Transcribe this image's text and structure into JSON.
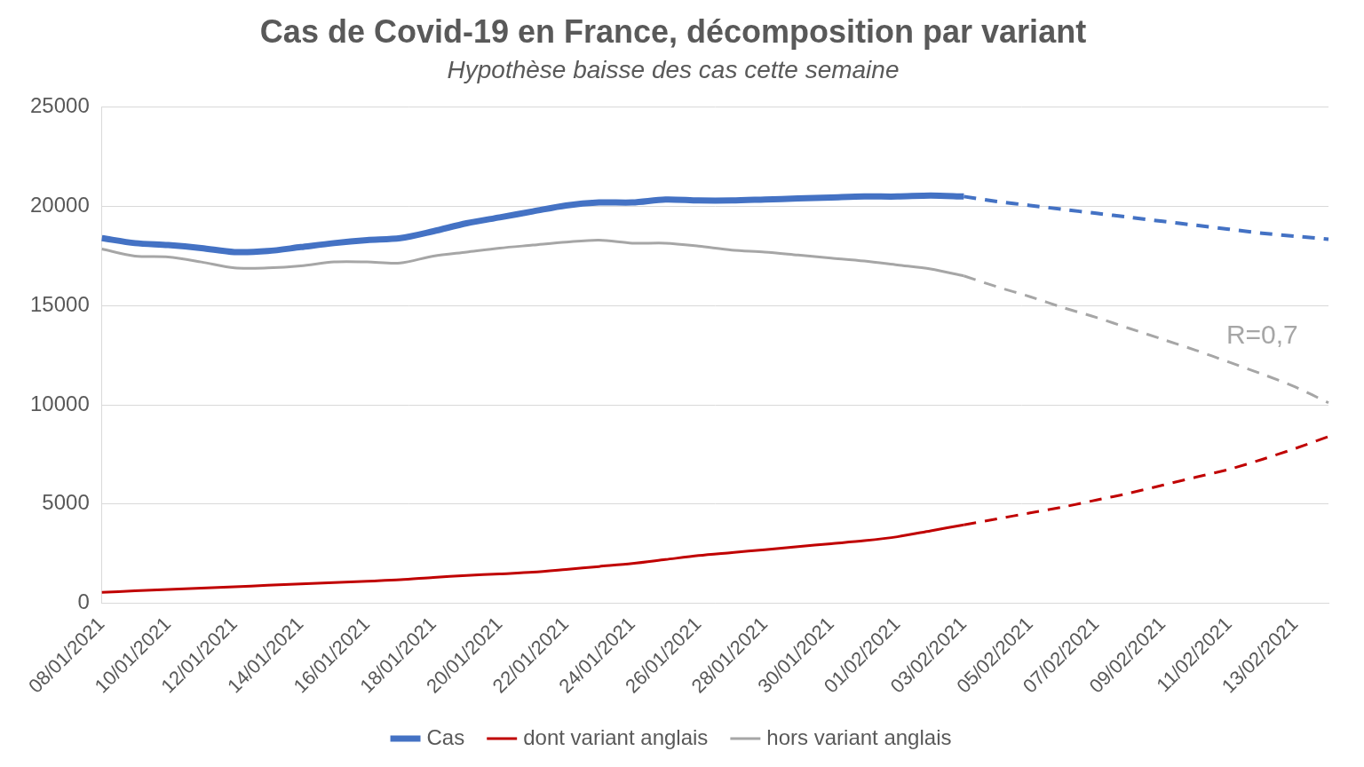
{
  "chart_data": {
    "type": "line",
    "title": "Cas de Covid-19 en France, décomposition par variant",
    "subtitle": "Hypothèse baisse des cas cette semaine",
    "categories": [
      "08/01/2021",
      null,
      "10/01/2021",
      null,
      "12/01/2021",
      null,
      "14/01/2021",
      null,
      "16/01/2021",
      null,
      "18/01/2021",
      null,
      "20/01/2021",
      null,
      "22/01/2021",
      null,
      "24/01/2021",
      null,
      "26/01/2021",
      null,
      "28/01/2021",
      null,
      "30/01/2021",
      null,
      "01/02/2021",
      null,
      "03/02/2021",
      null,
      "05/02/2021",
      null,
      "07/02/2021",
      null,
      "09/02/2021",
      null,
      "11/02/2021",
      null,
      "13/02/2021",
      null
    ],
    "series": [
      {
        "name": "Cas",
        "color": "#4472c4",
        "line_style": "solid",
        "values": [
          18400,
          18150,
          18050,
          17900,
          17700,
          17750,
          17950,
          18150,
          18300,
          18400,
          18750,
          19150,
          19450,
          19750,
          20050,
          20200,
          20200,
          20350,
          20300,
          20300,
          20350,
          20400,
          20450,
          20500,
          20500,
          20550,
          20500,
          null,
          null,
          null,
          null,
          null,
          null,
          null,
          null,
          null,
          null,
          null
        ],
        "projection": [
          null,
          null,
          null,
          null,
          null,
          null,
          null,
          null,
          null,
          null,
          null,
          null,
          null,
          null,
          null,
          null,
          null,
          null,
          null,
          null,
          null,
          null,
          null,
          null,
          null,
          null,
          20500,
          20250,
          20050,
          19850,
          19650,
          19450,
          19250,
          19050,
          18850,
          18650,
          18500,
          18350
        ]
      },
      {
        "name": "dont variant anglais",
        "color": "#c00000",
        "line_style": "solid",
        "values": [
          550,
          620,
          690,
          760,
          830,
          900,
          970,
          1040,
          1110,
          1180,
          1300,
          1400,
          1480,
          1560,
          1700,
          1850,
          2000,
          2200,
          2400,
          2550,
          2700,
          2850,
          3000,
          3150,
          3350,
          3650,
          3950,
          null,
          null,
          null,
          null,
          null,
          null,
          null,
          null,
          null,
          null,
          null
        ],
        "projection": [
          null,
          null,
          null,
          null,
          null,
          null,
          null,
          null,
          null,
          null,
          null,
          null,
          null,
          null,
          null,
          null,
          null,
          null,
          null,
          null,
          null,
          null,
          null,
          null,
          null,
          null,
          3950,
          4250,
          4550,
          4850,
          5200,
          5550,
          5950,
          6350,
          6750,
          7250,
          7800,
          8400
        ]
      },
      {
        "name": "hors variant anglais",
        "color": "#a6a6a6",
        "line_style": "solid",
        "values": [
          17850,
          17500,
          17450,
          17200,
          16900,
          16900,
          17000,
          17200,
          17200,
          17150,
          17500,
          17700,
          17900,
          18050,
          18200,
          18300,
          18150,
          18150,
          18000,
          17800,
          17700,
          17550,
          17400,
          17250,
          17050,
          16850,
          16500,
          null,
          null,
          null,
          null,
          null,
          null,
          null,
          null,
          null,
          null,
          null
        ],
        "projection": [
          null,
          null,
          null,
          null,
          null,
          null,
          null,
          null,
          null,
          null,
          null,
          null,
          null,
          null,
          null,
          null,
          null,
          null,
          null,
          null,
          null,
          null,
          null,
          null,
          null,
          null,
          16500,
          15950,
          15450,
          14900,
          14400,
          13850,
          13300,
          12750,
          12150,
          11550,
          10900,
          10100
        ]
      }
    ],
    "annotations": [
      {
        "text": "R=0,7",
        "series": "hors variant anglais"
      }
    ],
    "ylim": [
      0,
      25000
    ],
    "yticks": [
      0,
      5000,
      10000,
      15000,
      20000,
      25000
    ],
    "grid": true,
    "legend": "bottom"
  }
}
